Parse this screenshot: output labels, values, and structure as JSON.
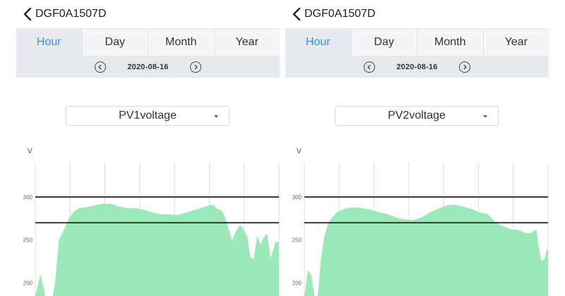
{
  "colors": {
    "accent": "#3a8ee6",
    "area": "#9be9b8",
    "grid": "#dcdcdc"
  },
  "panels": [
    {
      "device_title": "DGF0A1507D",
      "tabs": [
        {
          "label": "Hour",
          "active": true
        },
        {
          "label": "Day",
          "active": false
        },
        {
          "label": "Month",
          "active": false
        },
        {
          "label": "Year",
          "active": false
        }
      ],
      "date": "2020-08-16",
      "selector": "PV1voltage",
      "chart_data": {
        "type": "area",
        "ylabel": "V",
        "yticks": [
          300,
          250,
          200
        ],
        "ylim": [
          185,
          340
        ],
        "reference_lines": [
          300,
          270
        ],
        "x": [
          0,
          3,
          5,
          6,
          10,
          12,
          14,
          17,
          20,
          23,
          26,
          30,
          35,
          40,
          45,
          50,
          55,
          60,
          65,
          70,
          75,
          80,
          85,
          90,
          95,
          100,
          103,
          105,
          107,
          108,
          110,
          112,
          114,
          117,
          120,
          122,
          124,
          126,
          128,
          130,
          132,
          134,
          136,
          138,
          140,
          143,
          144.9
        ],
        "values": [
          185,
          210,
          195,
          180,
          180,
          205,
          250,
          262,
          275,
          283,
          287,
          288,
          290,
          292,
          292,
          289,
          287,
          287,
          285,
          282,
          280,
          280,
          279,
          282,
          285,
          288,
          290,
          291,
          289,
          286,
          285,
          281,
          270,
          250,
          262,
          268,
          262,
          255,
          230,
          228,
          255,
          245,
          253,
          258,
          228,
          248,
          248
        ]
      }
    },
    {
      "device_title": "DGF0A1507D",
      "tabs": [
        {
          "label": "Hour",
          "active": true
        },
        {
          "label": "Day",
          "active": false
        },
        {
          "label": "Month",
          "active": false
        },
        {
          "label": "Year",
          "active": false
        }
      ],
      "date": "2020-08-16",
      "selector": "PV2voltage",
      "chart_data": {
        "type": "area",
        "ylabel": "V",
        "yticks": [
          300,
          250,
          200
        ],
        "ylim": [
          185,
          340
        ],
        "reference_lines": [
          300,
          270
        ],
        "x": [
          0,
          2,
          4,
          6,
          8,
          10,
          12,
          14,
          16,
          20,
          25,
          30,
          35,
          40,
          45,
          50,
          55,
          60,
          65,
          70,
          75,
          80,
          85,
          90,
          95,
          100,
          105,
          110,
          115,
          120,
          125,
          128,
          130,
          133,
          135,
          137,
          139,
          141,
          142,
          144,
          145,
          146
        ],
        "values": [
          185,
          215,
          210,
          185,
          185,
          230,
          255,
          268,
          275,
          283,
          287,
          288,
          287,
          285,
          282,
          280,
          276,
          274,
          273,
          276,
          282,
          286,
          290,
          291,
          289,
          286,
          282,
          280,
          270,
          265,
          262,
          262,
          260,
          258,
          258,
          260,
          262,
          235,
          226,
          228,
          238,
          240
        ]
      }
    }
  ]
}
